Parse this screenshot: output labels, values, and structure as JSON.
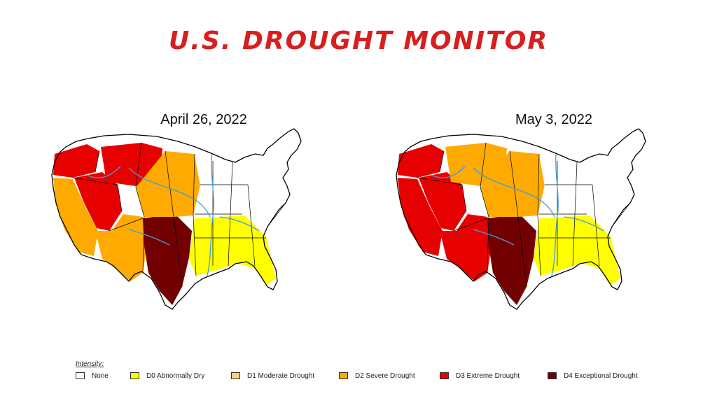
{
  "title": "U.S. DROUGHT MONITOR",
  "maps": [
    {
      "date": "April 26, 2022",
      "dominant_by_region": {
        "pacific_northwest": "D3",
        "california": "D2",
        "great_basin": "D3",
        "northern_rockies": "D3",
        "southwest": "D2",
        "southern_plains": "D4",
        "central_plains": "D2",
        "upper_midwest": "None",
        "southeast": "D0",
        "northeast": "None"
      }
    },
    {
      "date": "May 3, 2022",
      "dominant_by_region": {
        "pacific_northwest": "D3",
        "california": "D3",
        "great_basin": "D3",
        "northern_rockies": "D2",
        "southwest": "D3",
        "southern_plains": "D4",
        "central_plains": "D2",
        "upper_midwest": "None",
        "southeast": "D0",
        "northeast": "None"
      }
    }
  ],
  "legend": {
    "heading": "Intensity:",
    "items": [
      {
        "code": "None",
        "label": "None",
        "color": "#ffffff"
      },
      {
        "code": "D0",
        "label": "D0 Abnormally Dry",
        "color": "#ffff00"
      },
      {
        "code": "D1",
        "label": "D1 Moderate Drought",
        "color": "#fcd37f"
      },
      {
        "code": "D2",
        "label": "D2 Severe Drought",
        "color": "#ffaa00"
      },
      {
        "code": "D3",
        "label": "D3 Extreme Drought",
        "color": "#e60000"
      },
      {
        "code": "D4",
        "label": "D4 Exceptional Drought",
        "color": "#730000"
      }
    ]
  },
  "colors": {
    "title": "#d81e1e",
    "river": "#3a9fe0",
    "border": "#000000"
  }
}
